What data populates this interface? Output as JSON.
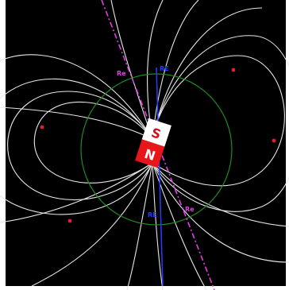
{
  "diagram": {
    "magnet": {
      "south_label": "S",
      "north_label": "N",
      "south_color": "#ffffff",
      "north_color": "#e8161b"
    },
    "axis_labels": {
      "magnetic_top": "Re",
      "magnetic_bottom": "Re",
      "geographic_top": "RE",
      "geographic_bottom": "RE"
    },
    "colors": {
      "background": "#000000",
      "field_lines": "#e6e6e6",
      "orbit_circle": "#1f8a1f",
      "magnetic_axis": "#e040e0",
      "geographic_axis": "#2a3cff",
      "field_point": "#e0202a"
    }
  }
}
